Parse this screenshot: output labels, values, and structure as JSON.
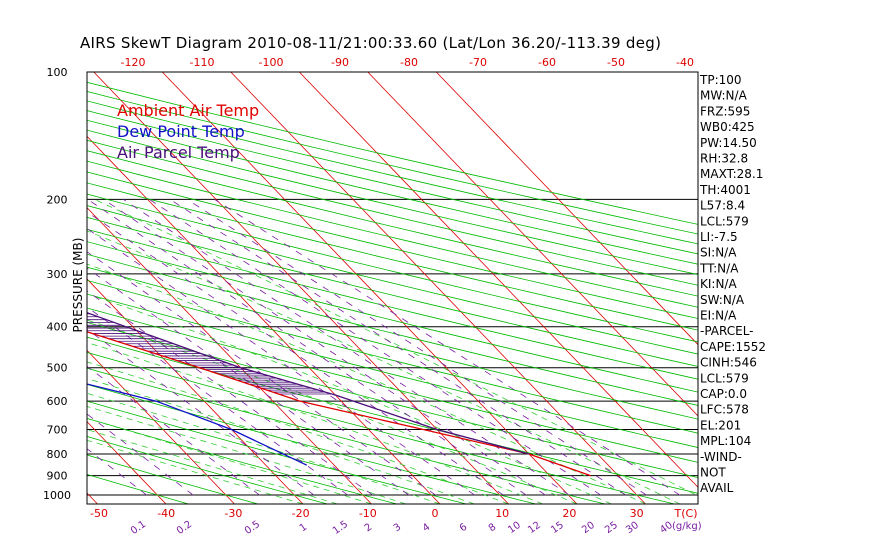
{
  "title": "AIRS SkewT Diagram 2010-08-11/21:00:33.60 (Lat/Lon 36.20/-113.39 deg)",
  "colors": {
    "ambient": "#e00000",
    "dewpoint": "#1010c8",
    "parcel": "#4b0f7a",
    "isotherm": "#dd0000",
    "dry_adiabat": "#00bb00",
    "moist_adiabat": "#33cc33",
    "mixing_ratio": "#7a1fa2",
    "isobar": "#000000"
  },
  "chart_data": {
    "type": "line",
    "title": "AIRS SkewT Diagram 2010-08-11/21:00:33.60 (Lat/Lon 36.20/-113.39 deg)",
    "ylabel": "PRESSURE (MB)",
    "xlabel": "T(C)",
    "mixing_ratio_unit": "(g/kg)",
    "ylim": [
      1050,
      100
    ],
    "y_scale": "log",
    "pressure_ticks": [
      100,
      200,
      300,
      400,
      500,
      600,
      700,
      800,
      900,
      1000
    ],
    "temp_ticks_top": [
      -120,
      -110,
      -100,
      -90,
      -80,
      -70,
      -60,
      -50,
      -40
    ],
    "temp_ticks_bottom": [
      -50,
      -40,
      -30,
      -20,
      -10,
      0,
      10,
      20,
      30
    ],
    "mixing_ratio_ticks": [
      "0.1",
      "0.2",
      "0.5",
      "1",
      "1.5",
      "2",
      "3",
      "4",
      "6",
      "8",
      "10",
      "12",
      "15",
      "20",
      "25",
      "30",
      "40"
    ],
    "legend": [
      "Ambient Air Temp",
      "Dew Point Temp",
      "Air Parcel Temp"
    ],
    "series": [
      {
        "name": "Ambient Air Temp",
        "points": [
          [
            100,
            -71
          ],
          [
            150,
            -64
          ],
          [
            200,
            -53
          ],
          [
            300,
            -42
          ],
          [
            400,
            -29
          ],
          [
            500,
            -16
          ],
          [
            600,
            -6
          ],
          [
            700,
            8
          ],
          [
            800,
            20
          ],
          [
            900,
            26
          ]
        ]
      },
      {
        "name": "Dew Point Temp",
        "points": [
          [
            100,
            -90
          ],
          [
            150,
            -89
          ],
          [
            200,
            -88
          ],
          [
            250,
            -84
          ],
          [
            300,
            -77
          ],
          [
            400,
            -60
          ],
          [
            500,
            -42
          ],
          [
            600,
            -27
          ],
          [
            700,
            -20
          ],
          [
            850,
            -14
          ]
        ]
      },
      {
        "name": "Air Parcel Temp",
        "points": [
          [
            100,
            -78
          ],
          [
            150,
            -64
          ],
          [
            200,
            -53
          ],
          [
            300,
            -35
          ],
          [
            400,
            -21
          ],
          [
            500,
            -10
          ],
          [
            580,
            0
          ],
          [
            700,
            10
          ],
          [
            800,
            20
          ]
        ]
      }
    ],
    "indices": [
      "TP:100",
      "MW:N/A",
      "FRZ:595",
      "WB0:425",
      "PW:14.50",
      "RH:32.8",
      "MAXT:28.1",
      "TH:4001",
      "L57:8.4",
      "LCL:579",
      "LI:-7.5",
      "SI:N/A",
      "TT:N/A",
      "KI:N/A",
      "SW:N/A",
      "EI:N/A",
      "-PARCEL-",
      "CAPE:1552",
      "CINH:546",
      "LCL:579",
      "CAP:0.0",
      "LFC:578",
      "EL:201",
      "MPL:104",
      "-WIND-",
      "NOT",
      "AVAIL"
    ]
  }
}
